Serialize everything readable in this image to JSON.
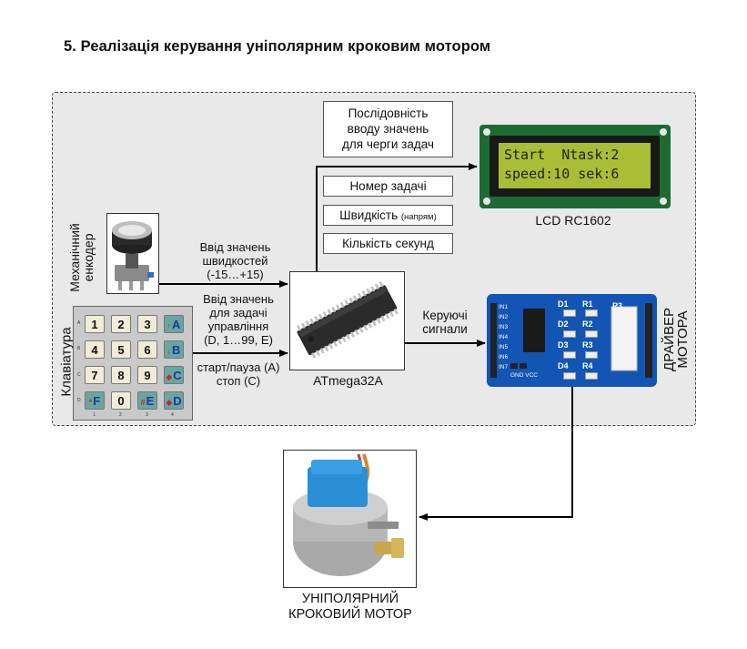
{
  "heading": "5.  Реалізація керування уніполярним кроковим мотором",
  "notes": {
    "sequence": [
      "Послідовність",
      "вводу значень",
      "для черги задач"
    ],
    "task_number": "Номер задачі",
    "speed_main": "Швидкість",
    "speed_sub": "(напрям)",
    "seconds": "Кількість секунд"
  },
  "lcd": {
    "caption": "LCD RC1602",
    "line1": "Start  Ntask:2",
    "line2": "speed:10 sek:6"
  },
  "encoder": {
    "caption": [
      "Механічний",
      "енкодер"
    ],
    "arrow_label": [
      "Ввід значень",
      "швидкостей",
      "(-15…+15)"
    ]
  },
  "keypad": {
    "caption": "Клавіатура",
    "arrow_label_task": [
      "Ввід значень",
      "для задачі",
      "управління",
      "(D, 1…99, E)"
    ],
    "arrow_label_control": [
      "старт/пауза (A)",
      "стоп (C)"
    ],
    "rows": [
      [
        {
          "t": "1",
          "k": "num"
        },
        {
          "t": "2",
          "k": "num"
        },
        {
          "t": "3",
          "k": "num"
        },
        {
          "t": "A",
          "k": "fn",
          "p": "↑"
        }
      ],
      [
        {
          "t": "4",
          "k": "num"
        },
        {
          "t": "5",
          "k": "num"
        },
        {
          "t": "6",
          "k": "num"
        },
        {
          "t": "B",
          "k": "fn",
          "p": "↓"
        }
      ],
      [
        {
          "t": "7",
          "k": "num"
        },
        {
          "t": "8",
          "k": "num"
        },
        {
          "t": "9",
          "k": "num"
        },
        {
          "t": "C",
          "k": "fn",
          "p": "◆"
        }
      ],
      [
        {
          "t": "F",
          "k": "fn",
          "p": "*"
        },
        {
          "t": "0",
          "k": "num"
        },
        {
          "t": "E",
          "k": "fn",
          "p": "#"
        },
        {
          "t": "D",
          "k": "fn",
          "p": "◆"
        }
      ]
    ]
  },
  "mcu": {
    "caption": "ATmega32A"
  },
  "driver": {
    "caption": [
      "ДРАЙВЕР",
      "МОТОРА"
    ],
    "arrow_label": [
      "Керуючі",
      "сигнали"
    ],
    "inputs": [
      "IN1",
      "IN2",
      "IN3",
      "IN4",
      "IN5",
      "IN6",
      "IN7"
    ],
    "diodes": [
      "D1",
      "D2",
      "D3",
      "D4"
    ],
    "resistors": [
      "R1",
      "R2",
      "R3",
      "R4"
    ],
    "connector": "P3",
    "gnd_label": "GND VCC"
  },
  "motor": {
    "caption": [
      "УНІПОЛЯРНИЙ",
      "КРОКОВИЙ МОТОР"
    ]
  },
  "colors": {
    "frame_bg": "#e9e9e9",
    "lcd_screen": "#a9bd37",
    "driver_board": "#1255b5",
    "motor_cap": "#2b8fd6"
  }
}
